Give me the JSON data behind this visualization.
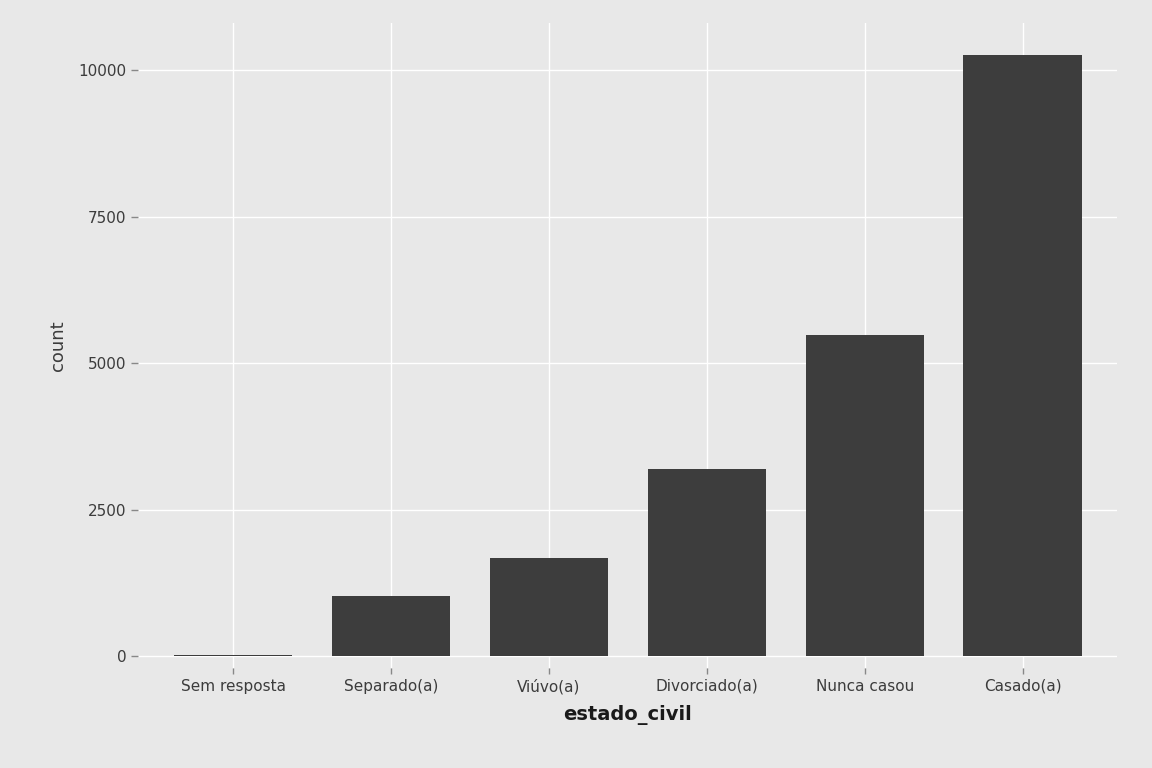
{
  "categories": [
    "Sem resposta",
    "Separado(a)",
    "Viúvo(a)",
    "Divorciado(a)",
    "Nunca casou",
    "Casado(a)"
  ],
  "values": [
    17,
    1027,
    1686,
    3204,
    5477,
    10263
  ],
  "bar_color": "#3d3d3d",
  "xlabel": "estado_civil",
  "ylabel": "count",
  "outer_background": "#e8e8e8",
  "panel_color": "#e8e8e8",
  "grid_color": "#ffffff",
  "yticks": [
    0,
    2500,
    5000,
    7500,
    10000
  ],
  "ylim": [
    -200,
    10800
  ],
  "axis_label_fontsize": 13,
  "tick_fontsize": 11,
  "bar_width": 0.75
}
